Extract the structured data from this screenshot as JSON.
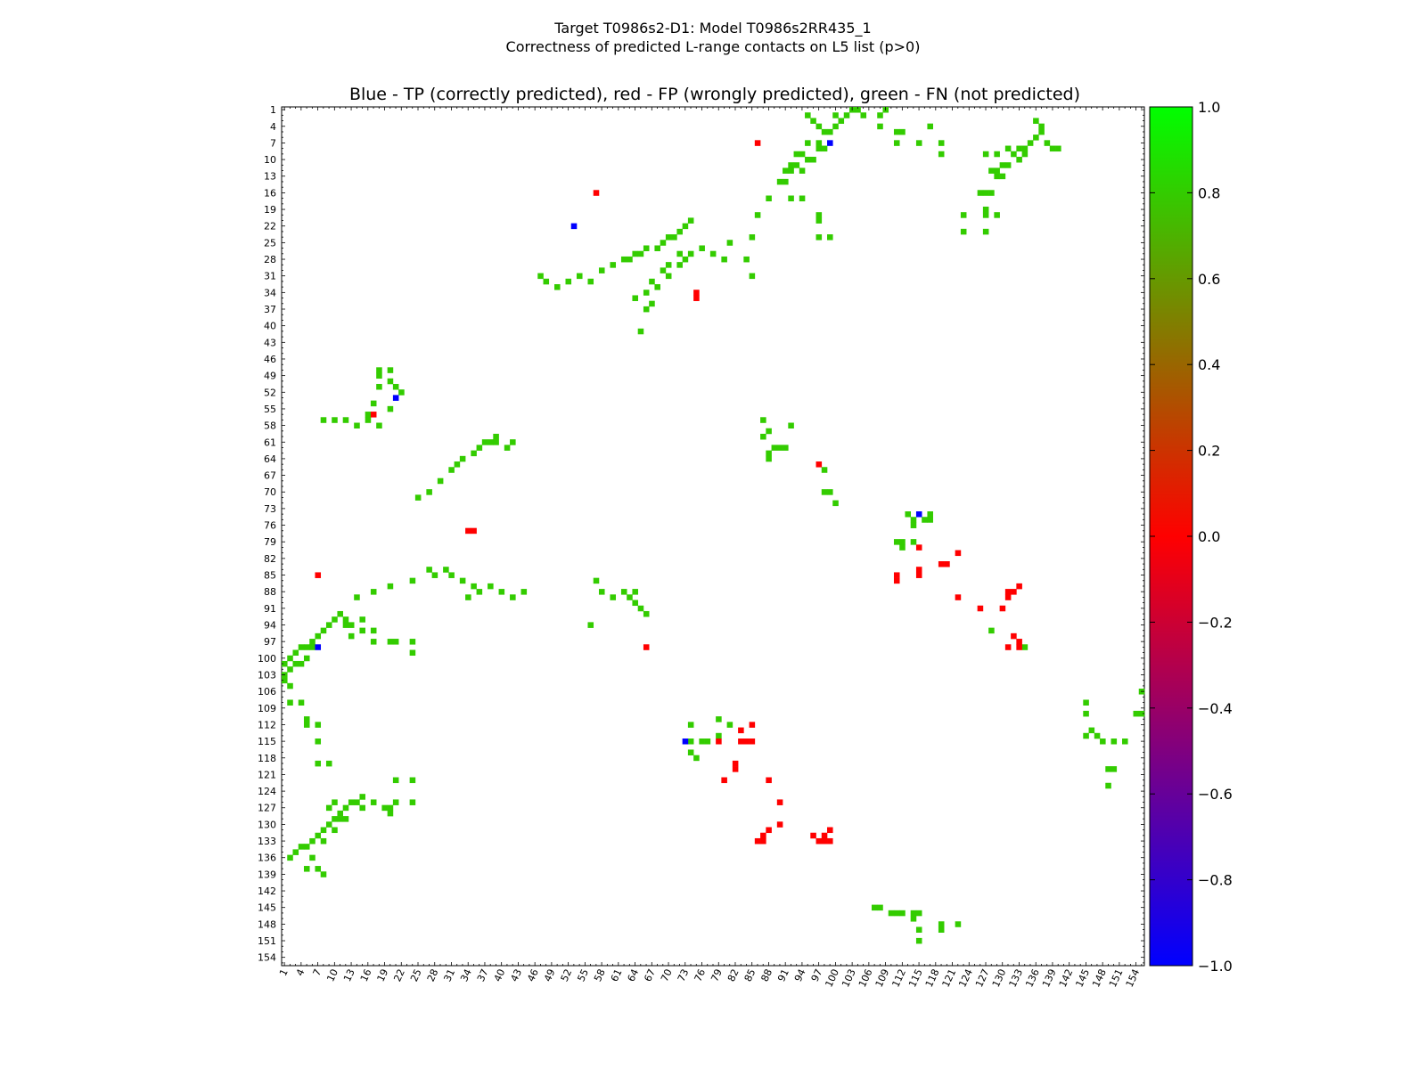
{
  "title_line1": "Target T0986s2-D1: Model T0986s2RR435_1",
  "title_line2": "Correctness of predicted L-range contacts on L5 list (p>0)",
  "chart_data": {
    "type": "heatmap",
    "title": "Blue - TP (correctly predicted), red - FP (wrongly predicted), green - FN (not predicted)",
    "xlabel": "",
    "ylabel": "",
    "xlim": [
      1,
      155
    ],
    "ylim": [
      1,
      155
    ],
    "tick_labels": [
      "1",
      "4",
      "7",
      "10",
      "13",
      "16",
      "19",
      "22",
      "25",
      "28",
      "31",
      "34",
      "37",
      "40",
      "43",
      "46",
      "49",
      "52",
      "55",
      "58",
      "61",
      "64",
      "67",
      "70",
      "73",
      "76",
      "79",
      "82",
      "85",
      "88",
      "91",
      "94",
      "97",
      "100",
      "103",
      "106",
      "109",
      "112",
      "115",
      "118",
      "121",
      "124",
      "127",
      "130",
      "133",
      "136",
      "139",
      "142",
      "145",
      "148",
      "151",
      "154"
    ],
    "colorbar": {
      "range": [
        -1.0,
        1.0
      ],
      "ticks": [
        "1.0",
        "0.8",
        "0.6",
        "0.4",
        "0.2",
        "0.0",
        "−0.2",
        "−0.4",
        "−0.6",
        "−0.8",
        "−1.0"
      ],
      "tick_values": [
        1.0,
        0.8,
        0.6,
        0.4,
        0.2,
        0.0,
        -0.2,
        -0.4,
        -0.6,
        -0.8,
        -1.0
      ]
    },
    "categories": {
      "FN": 0.8,
      "FP": 0.0,
      "TP": -1.0
    },
    "colors": {
      "FN": "#33cc00",
      "FP": "#ff0000",
      "TP": "#0000ff"
    },
    "contacts": {
      "FN": [
        [
          8,
          57
        ],
        [
          10,
          57
        ],
        [
          12,
          57
        ],
        [
          14,
          58
        ],
        [
          16,
          56
        ],
        [
          18,
          51
        ],
        [
          18,
          48
        ],
        [
          18,
          49
        ],
        [
          20,
          48
        ],
        [
          20,
          50
        ],
        [
          22,
          52
        ],
        [
          21,
          51
        ],
        [
          17,
          54
        ],
        [
          16,
          57
        ],
        [
          18,
          58
        ],
        [
          20,
          55
        ],
        [
          25,
          71
        ],
        [
          27,
          70
        ],
        [
          29,
          68
        ],
        [
          31,
          66
        ],
        [
          32,
          65
        ],
        [
          33,
          64
        ],
        [
          35,
          63
        ],
        [
          36,
          62
        ],
        [
          37,
          61
        ],
        [
          38,
          61
        ],
        [
          39,
          60
        ],
        [
          39,
          61
        ],
        [
          41,
          62
        ],
        [
          42,
          61
        ],
        [
          47,
          31
        ],
        [
          48,
          32
        ],
        [
          50,
          33
        ],
        [
          52,
          32
        ],
        [
          54,
          31
        ],
        [
          56,
          32
        ],
        [
          58,
          30
        ],
        [
          60,
          29
        ],
        [
          62,
          28
        ],
        [
          63,
          28
        ],
        [
          64,
          27
        ],
        [
          65,
          27
        ],
        [
          66,
          26
        ],
        [
          68,
          26
        ],
        [
          69,
          25
        ],
        [
          70,
          24
        ],
        [
          71,
          24
        ],
        [
          72,
          23
        ],
        [
          73,
          22
        ],
        [
          74,
          21
        ],
        [
          28,
          85
        ],
        [
          30,
          84
        ],
        [
          33,
          86
        ],
        [
          35,
          87
        ],
        [
          34,
          89
        ],
        [
          36,
          88
        ],
        [
          38,
          87
        ],
        [
          40,
          88
        ],
        [
          42,
          89
        ],
        [
          44,
          88
        ],
        [
          64,
          35
        ],
        [
          66,
          37
        ],
        [
          65,
          41
        ],
        [
          68,
          33
        ],
        [
          70,
          31
        ],
        [
          72,
          29
        ],
        [
          74,
          27
        ],
        [
          76,
          26
        ],
        [
          78,
          27
        ],
        [
          80,
          28
        ],
        [
          72,
          27
        ],
        [
          73,
          28
        ],
        [
          70,
          29
        ],
        [
          69,
          30
        ],
        [
          67,
          32
        ],
        [
          66,
          34
        ],
        [
          67,
          36
        ],
        [
          62,
          88
        ],
        [
          63,
          89
        ],
        [
          64,
          90
        ],
        [
          65,
          91
        ],
        [
          66,
          92
        ],
        [
          64,
          88
        ],
        [
          58,
          88
        ],
        [
          60,
          89
        ],
        [
          57,
          86
        ],
        [
          56,
          94
        ],
        [
          87,
          57
        ],
        [
          88,
          59
        ],
        [
          87,
          60
        ],
        [
          89,
          62
        ],
        [
          90,
          62
        ],
        [
          88,
          63
        ],
        [
          88,
          64
        ],
        [
          91,
          62
        ],
        [
          92,
          58
        ],
        [
          95,
          2
        ],
        [
          96,
          3
        ],
        [
          97,
          4
        ],
        [
          98,
          5
        ],
        [
          99,
          5
        ],
        [
          100,
          4
        ],
        [
          101,
          3
        ],
        [
          102,
          2
        ],
        [
          103,
          1
        ],
        [
          104,
          1
        ],
        [
          105,
          2
        ],
        [
          108,
          2
        ],
        [
          109,
          1
        ],
        [
          100,
          2
        ],
        [
          93,
          9
        ],
        [
          94,
          9
        ],
        [
          95,
          10
        ],
        [
          96,
          10
        ],
        [
          97,
          8
        ],
        [
          98,
          8
        ],
        [
          92,
          11
        ],
        [
          93,
          11
        ],
        [
          94,
          12
        ],
        [
          91,
          12
        ],
        [
          92,
          12
        ],
        [
          95,
          7
        ],
        [
          97,
          7
        ],
        [
          90,
          14
        ],
        [
          91,
          14
        ],
        [
          88,
          17
        ],
        [
          92,
          17
        ],
        [
          94,
          17
        ],
        [
          86,
          20
        ],
        [
          97,
          20
        ],
        [
          97,
          21
        ],
        [
          97,
          24
        ],
        [
          99,
          24
        ],
        [
          85,
          24
        ],
        [
          84,
          28
        ],
        [
          85,
          31
        ],
        [
          81,
          25
        ],
        [
          108,
          4
        ],
        [
          111,
          5
        ],
        [
          112,
          5
        ],
        [
          111,
          7
        ],
        [
          115,
          7
        ],
        [
          119,
          7
        ],
        [
          119,
          9
        ],
        [
          117,
          4
        ],
        [
          130,
          11
        ],
        [
          128,
          12
        ],
        [
          129,
          12
        ],
        [
          129,
          13
        ],
        [
          130,
          13
        ],
        [
          131,
          11
        ],
        [
          133,
          10
        ],
        [
          132,
          9
        ],
        [
          134,
          8
        ],
        [
          135,
          7
        ],
        [
          136,
          6
        ],
        [
          137,
          5
        ],
        [
          137,
          4
        ],
        [
          136,
          3
        ],
        [
          138,
          7
        ],
        [
          139,
          8
        ],
        [
          140,
          8
        ],
        [
          134,
          9
        ],
        [
          133,
          8
        ],
        [
          131,
          8
        ],
        [
          129,
          9
        ],
        [
          127,
          9
        ],
        [
          126,
          16
        ],
        [
          127,
          16
        ],
        [
          128,
          16
        ],
        [
          127,
          19
        ],
        [
          127,
          20
        ],
        [
          129,
          20
        ],
        [
          123,
          20
        ],
        [
          123,
          23
        ],
        [
          127,
          23
        ],
        [
          1,
          101
        ],
        [
          2,
          100
        ],
        [
          3,
          99
        ],
        [
          4,
          98
        ],
        [
          5,
          98
        ],
        [
          6,
          97
        ],
        [
          7,
          96
        ],
        [
          8,
          95
        ],
        [
          9,
          94
        ],
        [
          10,
          93
        ],
        [
          11,
          92
        ],
        [
          12,
          94
        ],
        [
          6,
          98
        ],
        [
          3,
          101
        ],
        [
          2,
          102
        ],
        [
          1,
          103
        ],
        [
          1,
          104
        ],
        [
          2,
          105
        ],
        [
          5,
          100
        ],
        [
          4,
          101
        ],
        [
          12,
          93
        ],
        [
          13,
          94
        ],
        [
          13,
          96
        ],
        [
          15,
          93
        ],
        [
          15,
          95
        ],
        [
          17,
          95
        ],
        [
          17,
          97
        ],
        [
          20,
          97
        ],
        [
          21,
          97
        ],
        [
          24,
          97
        ],
        [
          24,
          99
        ],
        [
          2,
          108
        ],
        [
          4,
          108
        ],
        [
          5,
          111
        ],
        [
          5,
          112
        ],
        [
          7,
          112
        ],
        [
          7,
          115
        ],
        [
          7,
          119
        ],
        [
          9,
          119
        ],
        [
          2,
          136
        ],
        [
          3,
          135
        ],
        [
          4,
          134
        ],
        [
          5,
          134
        ],
        [
          6,
          133
        ],
        [
          7,
          132
        ],
        [
          8,
          131
        ],
        [
          9,
          130
        ],
        [
          10,
          129
        ],
        [
          11,
          128
        ],
        [
          12,
          127
        ],
        [
          13,
          126
        ],
        [
          12,
          129
        ],
        [
          10,
          131
        ],
        [
          8,
          133
        ],
        [
          6,
          136
        ],
        [
          5,
          138
        ],
        [
          7,
          138
        ],
        [
          8,
          139
        ],
        [
          14,
          126
        ],
        [
          15,
          127
        ],
        [
          15,
          125
        ],
        [
          17,
          126
        ],
        [
          19,
          127
        ],
        [
          20,
          127
        ],
        [
          21,
          126
        ],
        [
          24,
          126
        ],
        [
          20,
          128
        ],
        [
          21,
          122
        ],
        [
          24,
          122
        ],
        [
          10,
          126
        ],
        [
          9,
          127
        ],
        [
          11,
          129
        ],
        [
          20,
          87
        ],
        [
          17,
          88
        ],
        [
          24,
          86
        ],
        [
          14,
          89
        ],
        [
          27,
          84
        ],
        [
          31,
          85
        ],
        [
          74,
          112
        ],
        [
          74,
          115
        ],
        [
          74,
          117
        ],
        [
          75,
          118
        ],
        [
          76,
          115
        ],
        [
          77,
          115
        ],
        [
          79,
          114
        ],
        [
          79,
          111
        ],
        [
          81,
          112
        ],
        [
          98,
          66
        ],
        [
          100,
          72
        ],
        [
          98,
          70
        ],
        [
          99,
          70
        ],
        [
          113,
          74
        ],
        [
          114,
          75
        ],
        [
          114,
          76
        ],
        [
          116,
          75
        ],
        [
          117,
          75
        ],
        [
          117,
          74
        ],
        [
          111,
          79
        ],
        [
          112,
          79
        ],
        [
          112,
          80
        ],
        [
          114,
          79
        ],
        [
          145,
          108
        ],
        [
          145,
          110
        ],
        [
          146,
          113
        ],
        [
          145,
          114
        ],
        [
          147,
          114
        ],
        [
          148,
          115
        ],
        [
          150,
          115
        ],
        [
          152,
          115
        ],
        [
          107,
          145
        ],
        [
          108,
          145
        ],
        [
          110,
          146
        ],
        [
          111,
          146
        ],
        [
          112,
          146
        ],
        [
          114,
          146
        ],
        [
          114,
          147
        ],
        [
          115,
          146
        ],
        [
          115,
          149
        ],
        [
          115,
          151
        ],
        [
          119,
          148
        ],
        [
          119,
          149
        ],
        [
          122,
          148
        ],
        [
          128,
          95
        ],
        [
          134,
          98
        ],
        [
          149,
          120
        ],
        [
          150,
          120
        ],
        [
          149,
          123
        ],
        [
          155,
          106
        ],
        [
          155,
          110
        ],
        [
          154,
          110
        ]
      ],
      "FP": [
        [
          86,
          7
        ],
        [
          57,
          16
        ],
        [
          75,
          34
        ],
        [
          75,
          35
        ],
        [
          17,
          56
        ],
        [
          34,
          77
        ],
        [
          35,
          77
        ],
        [
          7,
          85
        ],
        [
          97,
          65
        ],
        [
          115,
          80
        ],
        [
          122,
          81
        ],
        [
          115,
          84
        ],
        [
          115,
          85
        ],
        [
          111,
          85
        ],
        [
          111,
          86
        ],
        [
          119,
          83
        ],
        [
          120,
          83
        ],
        [
          122,
          89
        ],
        [
          126,
          91
        ],
        [
          130,
          91
        ],
        [
          131,
          89
        ],
        [
          132,
          88
        ],
        [
          131,
          88
        ],
        [
          133,
          87
        ],
        [
          132,
          96
        ],
        [
          133,
          97
        ],
        [
          133,
          98
        ],
        [
          131,
          98
        ],
        [
          66,
          98
        ],
        [
          83,
          113
        ],
        [
          85,
          112
        ],
        [
          79,
          115
        ],
        [
          83,
          115
        ],
        [
          84,
          115
        ],
        [
          85,
          115
        ],
        [
          82,
          119
        ],
        [
          82,
          120
        ],
        [
          80,
          122
        ],
        [
          88,
          122
        ],
        [
          90,
          126
        ],
        [
          90,
          130
        ],
        [
          88,
          131
        ],
        [
          87,
          132
        ],
        [
          86,
          133
        ],
        [
          87,
          133
        ],
        [
          96,
          132
        ],
        [
          97,
          133
        ],
        [
          98,
          132
        ],
        [
          98,
          133
        ],
        [
          99,
          131
        ],
        [
          99,
          133
        ]
      ],
      "TP": [
        [
          99,
          7
        ],
        [
          53,
          22
        ],
        [
          21,
          53
        ],
        [
          115,
          74
        ],
        [
          73,
          115
        ],
        [
          7,
          98
        ]
      ]
    }
  }
}
